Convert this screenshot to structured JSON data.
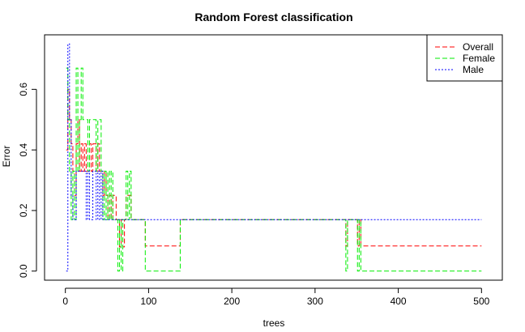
{
  "chart_data": {
    "type": "line",
    "title": "Random Forest classification",
    "xlabel": "trees",
    "ylabel": "Error",
    "xlim": [
      -25,
      525
    ],
    "ylim": [
      -0.03,
      0.78
    ],
    "xticks": [
      0,
      100,
      200,
      300,
      400,
      500
    ],
    "yticks": [
      0.0,
      0.2,
      0.4,
      0.6
    ],
    "legend": {
      "position": "top-right"
    },
    "series": [
      {
        "name": "Overall",
        "color": "#ff0000",
        "dash": "6,3",
        "points": [
          [
            1,
            0.4
          ],
          [
            3,
            0.6
          ],
          [
            5,
            0.5
          ],
          [
            7,
            0.42
          ],
          [
            9,
            0.33
          ],
          [
            11,
            0.25
          ],
          [
            13,
            0.42
          ],
          [
            15,
            0.5
          ],
          [
            17,
            0.33
          ],
          [
            19,
            0.42
          ],
          [
            21,
            0.33
          ],
          [
            23,
            0.42
          ],
          [
            25,
            0.33
          ],
          [
            27,
            0.33
          ],
          [
            29,
            0.42
          ],
          [
            31,
            0.33
          ],
          [
            33,
            0.42
          ],
          [
            35,
            0.42
          ],
          [
            37,
            0.33
          ],
          [
            39,
            0.42
          ],
          [
            41,
            0.33
          ],
          [
            43,
            0.33
          ],
          [
            45,
            0.25
          ],
          [
            47,
            0.33
          ],
          [
            49,
            0.25
          ],
          [
            51,
            0.17
          ],
          [
            53,
            0.25
          ],
          [
            55,
            0.17
          ],
          [
            57,
            0.25
          ],
          [
            59,
            0.25
          ],
          [
            61,
            0.17
          ],
          [
            63,
            0.17
          ],
          [
            65,
            0.08
          ],
          [
            67,
            0.17
          ],
          [
            69,
            0.08
          ],
          [
            71,
            0.17
          ],
          [
            73,
            0.25
          ],
          [
            75,
            0.25
          ],
          [
            77,
            0.25
          ],
          [
            79,
            0.17
          ],
          [
            81,
            0.17
          ],
          [
            95,
            0.17
          ],
          [
            96,
            0.083
          ],
          [
            137,
            0.083
          ],
          [
            138,
            0.17
          ],
          [
            335,
            0.17
          ],
          [
            337,
            0.083
          ],
          [
            339,
            0.17
          ],
          [
            341,
            0.17
          ],
          [
            349,
            0.17
          ],
          [
            351,
            0.083
          ],
          [
            353,
            0.17
          ],
          [
            355,
            0.083
          ],
          [
            500,
            0.083
          ]
        ]
      },
      {
        "name": "Female",
        "color": "#00ee00",
        "dash": "6,3",
        "points": [
          [
            1,
            0.67
          ],
          [
            3,
            0.5
          ],
          [
            5,
            0.33
          ],
          [
            7,
            0.17
          ],
          [
            9,
            0.33
          ],
          [
            11,
            0.17
          ],
          [
            13,
            0.67
          ],
          [
            15,
            0.33
          ],
          [
            17,
            0.5
          ],
          [
            19,
            0.67
          ],
          [
            21,
            0.5
          ],
          [
            25,
            0.5
          ],
          [
            27,
            0.33
          ],
          [
            29,
            0.5
          ],
          [
            31,
            0.5
          ],
          [
            35,
            0.5
          ],
          [
            37,
            0.33
          ],
          [
            39,
            0.5
          ],
          [
            41,
            0.5
          ],
          [
            43,
            0.33
          ],
          [
            45,
            0.17
          ],
          [
            47,
            0.33
          ],
          [
            49,
            0.17
          ],
          [
            51,
            0.33
          ],
          [
            53,
            0.17
          ],
          [
            55,
            0.33
          ],
          [
            57,
            0.17
          ],
          [
            59,
            0.17
          ],
          [
            61,
            0.17
          ],
          [
            63,
            0.0
          ],
          [
            65,
            0.17
          ],
          [
            67,
            0.0
          ],
          [
            69,
            0.17
          ],
          [
            71,
            0.17
          ],
          [
            73,
            0.33
          ],
          [
            75,
            0.17
          ],
          [
            77,
            0.33
          ],
          [
            79,
            0.17
          ],
          [
            81,
            0.17
          ],
          [
            95,
            0.17
          ],
          [
            96,
            0.0
          ],
          [
            137,
            0.0
          ],
          [
            138,
            0.17
          ],
          [
            335,
            0.17
          ],
          [
            337,
            0.0
          ],
          [
            339,
            0.17
          ],
          [
            341,
            0.17
          ],
          [
            349,
            0.17
          ],
          [
            351,
            0.0
          ],
          [
            353,
            0.17
          ],
          [
            355,
            0.0
          ],
          [
            500,
            0.0
          ]
        ]
      },
      {
        "name": "Male",
        "color": "#0000ff",
        "dash": "2,2",
        "points": [
          [
            1,
            0.0
          ],
          [
            3,
            0.75
          ],
          [
            5,
            0.5
          ],
          [
            7,
            0.25
          ],
          [
            9,
            0.17
          ],
          [
            11,
            0.17
          ],
          [
            13,
            0.33
          ],
          [
            15,
            0.33
          ],
          [
            17,
            0.33
          ],
          [
            19,
            0.33
          ],
          [
            21,
            0.33
          ],
          [
            23,
            0.33
          ],
          [
            25,
            0.17
          ],
          [
            27,
            0.33
          ],
          [
            29,
            0.17
          ],
          [
            31,
            0.17
          ],
          [
            33,
            0.33
          ],
          [
            35,
            0.33
          ],
          [
            37,
            0.17
          ],
          [
            39,
            0.33
          ],
          [
            41,
            0.17
          ],
          [
            43,
            0.33
          ],
          [
            45,
            0.17
          ],
          [
            47,
            0.17
          ],
          [
            500,
            0.17
          ]
        ]
      }
    ]
  }
}
